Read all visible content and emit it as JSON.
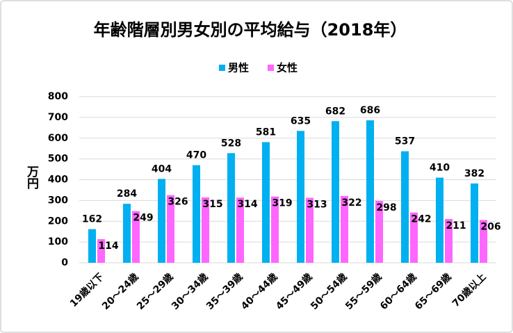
{
  "chart_data": {
    "type": "bar",
    "title": "年齢階層別男女別の平均給与（2018年）",
    "y_label": "万円",
    "categories": [
      "19歳以下",
      "20～24歳",
      "25～29歳",
      "30～34歳",
      "35～39歳",
      "40～44歳",
      "45～49歳",
      "50～54歳",
      "55～59歳",
      "60～64歳",
      "65～69歳",
      "70歳以上"
    ],
    "series": [
      {
        "name": "男性",
        "color": "#00b0f0",
        "values": [
          162,
          284,
          404,
          470,
          528,
          581,
          635,
          682,
          686,
          537,
          410,
          382
        ]
      },
      {
        "name": "女性",
        "color": "#ff66ff",
        "values": [
          114,
          249,
          326,
          315,
          314,
          319,
          313,
          322,
          298,
          242,
          211,
          206
        ]
      }
    ],
    "ylim": [
      0,
      800
    ],
    "yticks": [
      0,
      100,
      200,
      300,
      400,
      500,
      600,
      700,
      800
    ],
    "grid": true,
    "legend": "top"
  }
}
